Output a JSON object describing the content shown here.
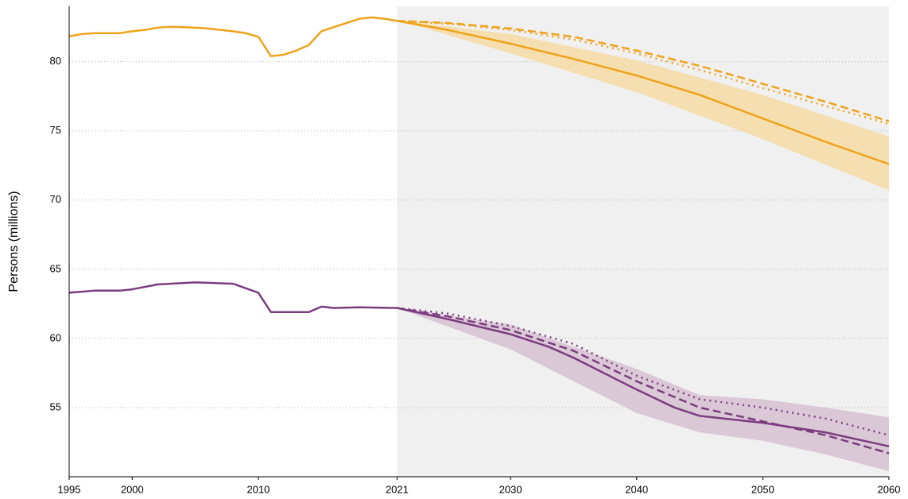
{
  "chart_data": {
    "type": "line",
    "ylabel": "Persons (millions)",
    "xlim": [
      1995,
      2060
    ],
    "ylim": [
      50,
      84
    ],
    "xticks": [
      1995,
      2000,
      2010,
      2021,
      2030,
      2040,
      2050,
      2060
    ],
    "yticks": [
      55,
      60,
      65,
      70,
      75,
      80
    ],
    "grid": true,
    "shaded_region": [
      2021,
      2060
    ],
    "bands": [
      {
        "color": "#f5dfb0",
        "x": [
          2021,
          2030,
          2040,
          2050,
          2060
        ],
        "lower": [
          83.0,
          80.6,
          77.8,
          74.4,
          70.7
        ],
        "upper": [
          83.0,
          82.0,
          80.1,
          77.6,
          74.6
        ]
      },
      {
        "color": "#dbc8d7",
        "x": [
          2021,
          2030,
          2040,
          2045,
          2050,
          2055,
          2060
        ],
        "lower": [
          62.2,
          59.2,
          54.6,
          53.2,
          52.6,
          51.6,
          50.4
        ],
        "upper": [
          62.2,
          61.0,
          57.8,
          55.9,
          55.6,
          55.0,
          54.3
        ]
      }
    ],
    "series": [
      {
        "color": "#eea31a",
        "dash": "solid",
        "x": [
          1995,
          1996,
          1997,
          1998,
          1999,
          2000,
          2001,
          2002,
          2003,
          2004,
          2005,
          2006,
          2007,
          2008,
          2009,
          2010,
          2011,
          2012,
          2013,
          2014,
          2015,
          2016,
          2017,
          2018,
          2019,
          2020,
          2021
        ],
        "values": [
          81.83,
          82.0,
          82.06,
          82.06,
          82.06,
          82.2,
          82.3,
          82.46,
          82.52,
          82.5,
          82.46,
          82.4,
          82.3,
          82.2,
          82.06,
          81.8,
          80.4,
          80.5,
          80.8,
          81.2,
          82.2,
          82.5,
          82.8,
          83.1,
          83.2,
          83.1,
          82.95
        ]
      },
      {
        "color": "#eea31a",
        "dash": "solid",
        "x": [
          2021,
          2025,
          2030,
          2035,
          2040,
          2045,
          2050,
          2055,
          2060
        ],
        "values": [
          82.95,
          82.3,
          81.3,
          80.2,
          79.0,
          77.6,
          75.9,
          74.2,
          72.6
        ]
      },
      {
        "color": "#eea31a",
        "dash": "dashed",
        "x": [
          2021,
          2025,
          2030,
          2035,
          2040,
          2045,
          2050,
          2055,
          2060
        ],
        "values": [
          82.95,
          82.8,
          82.4,
          81.8,
          80.8,
          79.7,
          78.4,
          77.1,
          75.7
        ]
      },
      {
        "color": "#eea31a",
        "dash": "dotted",
        "x": [
          2021,
          2025,
          2030,
          2035,
          2040,
          2045,
          2050,
          2055,
          2060
        ],
        "values": [
          82.95,
          82.75,
          82.3,
          81.6,
          80.6,
          79.4,
          78.1,
          76.8,
          75.5
        ]
      },
      {
        "color": "#7b3d7e",
        "dash": "solid",
        "x": [
          1995,
          1997,
          1999,
          2000,
          2002,
          2005,
          2008,
          2010,
          2011,
          2014,
          2015,
          2016,
          2018,
          2021
        ],
        "values": [
          63.3,
          63.45,
          63.45,
          63.55,
          63.9,
          64.05,
          63.95,
          63.3,
          61.9,
          61.9,
          62.3,
          62.2,
          62.25,
          62.2
        ]
      },
      {
        "color": "#7b3d7e",
        "dash": "solid",
        "x": [
          2021,
          2025,
          2030,
          2033,
          2035,
          2040,
          2043,
          2045,
          2050,
          2055,
          2060
        ],
        "values": [
          62.2,
          61.4,
          60.3,
          59.4,
          58.6,
          56.3,
          55.0,
          54.4,
          53.9,
          53.2,
          52.2
        ]
      },
      {
        "color": "#7b3d7e",
        "dash": "dashed",
        "x": [
          2021,
          2025,
          2030,
          2035,
          2040,
          2045,
          2050,
          2055,
          2060
        ],
        "values": [
          62.2,
          61.6,
          60.6,
          59.1,
          56.9,
          55.0,
          54.0,
          53.0,
          51.7
        ]
      },
      {
        "color": "#7b3d7e",
        "dash": "dotted",
        "x": [
          2021,
          2025,
          2030,
          2035,
          2040,
          2045,
          2050,
          2055,
          2060
        ],
        "values": [
          62.2,
          61.8,
          60.9,
          59.6,
          57.3,
          55.6,
          55.0,
          54.2,
          53.0
        ]
      }
    ]
  }
}
